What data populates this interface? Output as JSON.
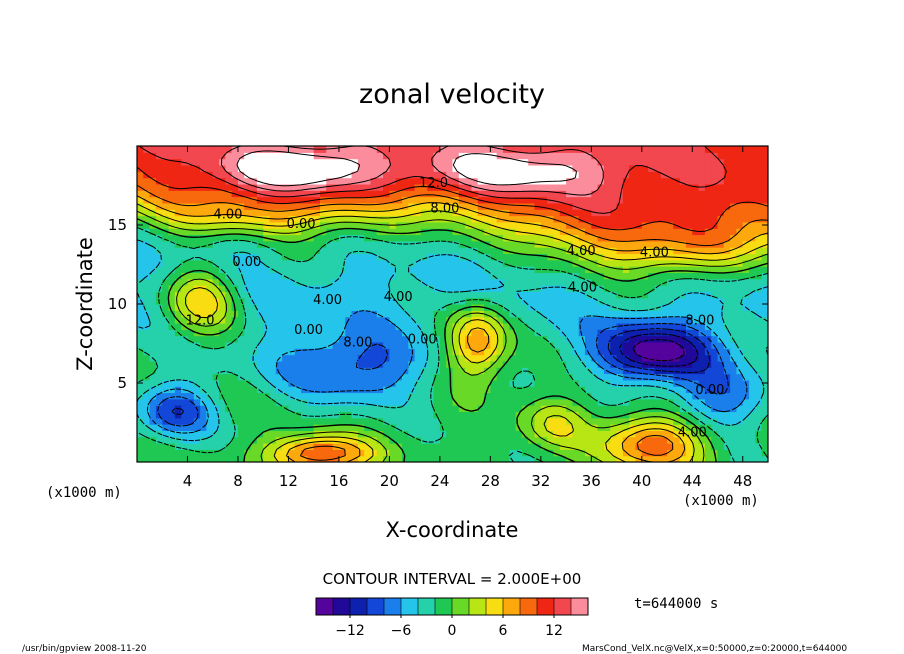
{
  "chart_data": {
    "type": "heatmap",
    "title": "zonal velocity",
    "xlabel": "X-coordinate",
    "ylabel": "Z-coordinate",
    "x_unit_label": "(x1000 m)",
    "y_unit_label": "(x1000 m)",
    "xlim": [
      0,
      50
    ],
    "ylim": [
      0,
      20
    ],
    "x_ticks": [
      4,
      8,
      12,
      16,
      20,
      24,
      28,
      32,
      36,
      40,
      44,
      48
    ],
    "y_ticks": [
      5,
      10,
      15
    ],
    "contour_interval_text": "CONTOUR INTERVAL = 2.000E+00",
    "time_text": "t=644000 s",
    "colorbar": {
      "min": -16,
      "max": 16,
      "ticks": [
        -12,
        -6,
        0,
        6,
        12
      ],
      "tick_labels": [
        "−12",
        "−6",
        "0",
        "6",
        "12"
      ]
    },
    "contour_labels": [
      {
        "text": "12.0",
        "x": 23.5,
        "y": 17.4
      },
      {
        "text": "8.00",
        "x": 24.4,
        "y": 15.8
      },
      {
        "text": "4.00",
        "x": 7.2,
        "y": 15.4
      },
      {
        "text": "0.00",
        "x": 13.0,
        "y": 14.8
      },
      {
        "text": "4.00",
        "x": 35.2,
        "y": 13.1
      },
      {
        "text": "4.00",
        "x": 41.0,
        "y": 13.0
      },
      {
        "text": "0.00",
        "x": 8.7,
        "y": 12.4
      },
      {
        "text": "12.0",
        "x": 5.0,
        "y": 8.7
      },
      {
        "text": "4.00",
        "x": 15.1,
        "y": 10.0
      },
      {
        "text": "4.00",
        "x": 20.7,
        "y": 10.2
      },
      {
        "text": "0.00",
        "x": 13.6,
        "y": 8.1
      },
      {
        "text": "8.00",
        "x": 17.5,
        "y": 7.3
      },
      {
        "text": "0.00",
        "x": 22.6,
        "y": 7.5
      },
      {
        "text": "8.00",
        "x": 44.6,
        "y": 8.7
      },
      {
        "text": "0.00",
        "x": 45.4,
        "y": 4.3
      },
      {
        "text": "4.00",
        "x": 44.0,
        "y": 1.6
      },
      {
        "text": "4.00",
        "x": 35.3,
        "y": 10.8
      }
    ]
  },
  "footer": {
    "left": "/usr/bin/gpview  2008-11-20",
    "right": "MarsCond_VelX.nc@VelX,x=0:50000,z=0:20000,t=644000"
  }
}
